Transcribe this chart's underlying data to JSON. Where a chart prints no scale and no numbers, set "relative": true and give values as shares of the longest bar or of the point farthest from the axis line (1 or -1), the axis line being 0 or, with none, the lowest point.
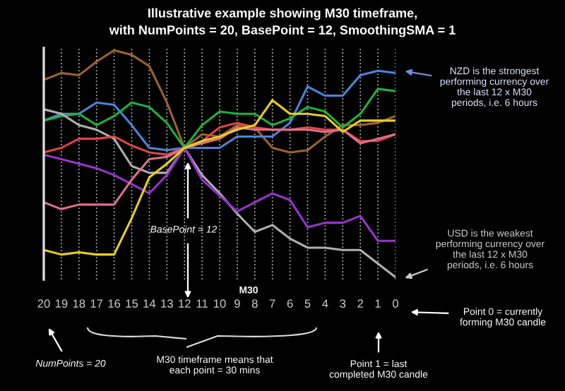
{
  "chart_data": {
    "type": "line",
    "title": "Illustrative example showing M30 timeframe,",
    "subtitle": "with NumPoints = 20, BasePoint = 12, SmoothingSMA = 1",
    "categories": [
      "20",
      "19",
      "18",
      "17",
      "16",
      "15",
      "14",
      "13",
      "12",
      "11",
      "10",
      "9",
      "8",
      "7",
      "6",
      "5",
      "4",
      "3",
      "2",
      "1",
      "0"
    ],
    "relative": true,
    "grid": "x",
    "ref_lines": [
      {
        "axis": "x",
        "value": "20",
        "color": "#dddddd"
      }
    ],
    "marker": "none",
    "line_style": "solid",
    "series": [
      {
        "color": "#a0622d",
        "values": [
          0.87,
          0.9,
          0.89,
          0.95,
          1.0,
          0.98,
          0.93,
          0.77,
          0.57,
          0.63,
          0.62,
          0.67,
          0.66,
          0.57,
          0.55,
          0.56,
          0.62,
          0.67,
          0.67,
          0.68,
          0.71
        ]
      },
      {
        "color": "#4a86d8",
        "values": [
          0.69,
          0.72,
          0.72,
          0.77,
          0.76,
          0.67,
          0.57,
          0.56,
          0.57,
          0.57,
          0.57,
          0.62,
          0.62,
          0.62,
          0.68,
          0.84,
          0.8,
          0.8,
          0.89,
          0.91,
          0.9
        ]
      },
      {
        "color": "#1fb23a",
        "values": [
          0.69,
          0.71,
          0.72,
          0.67,
          0.71,
          0.77,
          0.75,
          0.68,
          0.57,
          0.67,
          0.73,
          0.72,
          0.72,
          0.67,
          0.7,
          0.75,
          0.73,
          0.66,
          0.72,
          0.83,
          0.82
        ]
      },
      {
        "color": "#b0b0b0",
        "values": [
          0.74,
          0.72,
          0.67,
          0.65,
          0.61,
          0.49,
          0.46,
          0.46,
          0.57,
          0.45,
          0.37,
          0.28,
          0.2,
          0.23,
          0.17,
          0.13,
          0.13,
          0.12,
          0.12,
          0.06,
          0.0
        ]
      },
      {
        "color": "#9933cc",
        "values": [
          0.54,
          0.52,
          0.5,
          0.48,
          0.45,
          0.41,
          0.37,
          0.45,
          0.57,
          0.43,
          0.36,
          0.29,
          0.33,
          0.37,
          0.34,
          0.22,
          0.24,
          0.24,
          0.27,
          0.16,
          0.16
        ]
      },
      {
        "color": "#e04545",
        "values": [
          0.55,
          0.57,
          0.61,
          0.61,
          0.62,
          0.58,
          0.55,
          0.54,
          0.57,
          0.6,
          0.66,
          0.68,
          0.66,
          0.65,
          0.65,
          0.66,
          0.65,
          0.65,
          0.6,
          0.6,
          0.63
        ]
      },
      {
        "color": "#e0708a",
        "values": [
          0.33,
          0.3,
          0.32,
          0.32,
          0.32,
          0.43,
          0.52,
          0.53,
          0.57,
          0.59,
          0.61,
          0.66,
          0.65,
          0.65,
          0.65,
          0.65,
          0.64,
          0.65,
          0.59,
          0.61,
          0.63
        ]
      },
      {
        "color": "#e8d020",
        "values": [
          0.12,
          0.1,
          0.11,
          0.1,
          0.1,
          0.26,
          0.44,
          0.5,
          0.57,
          0.6,
          0.62,
          0.65,
          0.67,
          0.78,
          0.72,
          0.72,
          0.71,
          0.64,
          0.69,
          0.69,
          0.69
        ]
      }
    ],
    "annotations": [
      "NZD is the strongest performing currency over the last 12 x M30 periods, i.e. 6 hours",
      "USD is the weakest performing currency over the last 12 x M30 periods, i.e. 6 hours",
      "BasePoint = 12",
      "M30",
      "NumPoints = 20",
      "M30 timeframe means that each point = 30 mins",
      "Point 1 = last completed M30 candle",
      "Point 0 = currently forming M30 candle"
    ]
  }
}
